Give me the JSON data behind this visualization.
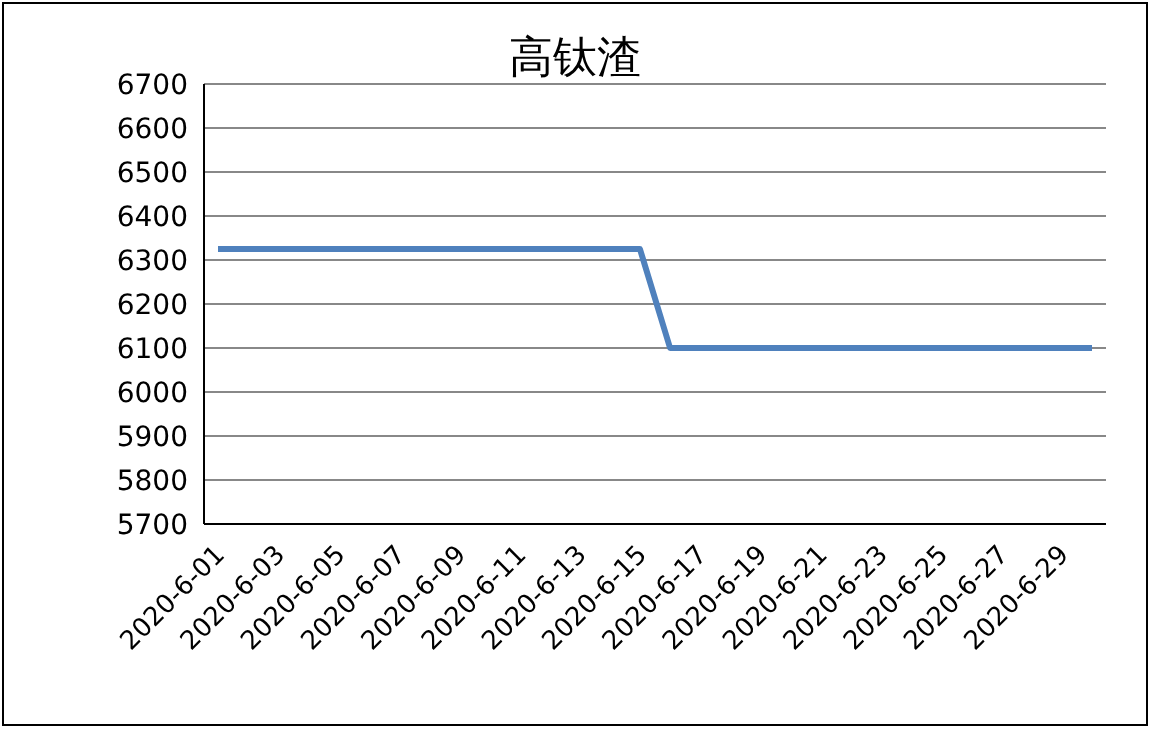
{
  "chart_data": {
    "type": "line",
    "title": "高钛渣",
    "categories": [
      "2020-6-01",
      null,
      "2020-6-03",
      null,
      "2020-6-05",
      null,
      "2020-6-07",
      null,
      "2020-6-09",
      null,
      "2020-6-11",
      null,
      "2020-6-13",
      null,
      "2020-6-15",
      null,
      "2020-6-17",
      null,
      "2020-6-19",
      null,
      "2020-6-21",
      null,
      "2020-6-23",
      null,
      "2020-6-25",
      null,
      "2020-6-27",
      null,
      "2020-6-29",
      null
    ],
    "series": [
      {
        "color": "#4f81bd",
        "values": [
          6325,
          6325,
          6325,
          6325,
          6325,
          6325,
          6325,
          6325,
          6325,
          6325,
          6325,
          6325,
          6325,
          6325,
          6325,
          6100,
          6100,
          6100,
          6100,
          6100,
          6100,
          6100,
          6100,
          6100,
          6100,
          6100,
          6100,
          6100,
          6100,
          6100
        ]
      }
    ],
    "ylim": [
      5700,
      6700
    ],
    "yticks": [
      5700,
      5800,
      5900,
      6000,
      6100,
      6200,
      6300,
      6400,
      6500,
      6600,
      6700
    ],
    "grid": "y",
    "marker": "none"
  }
}
